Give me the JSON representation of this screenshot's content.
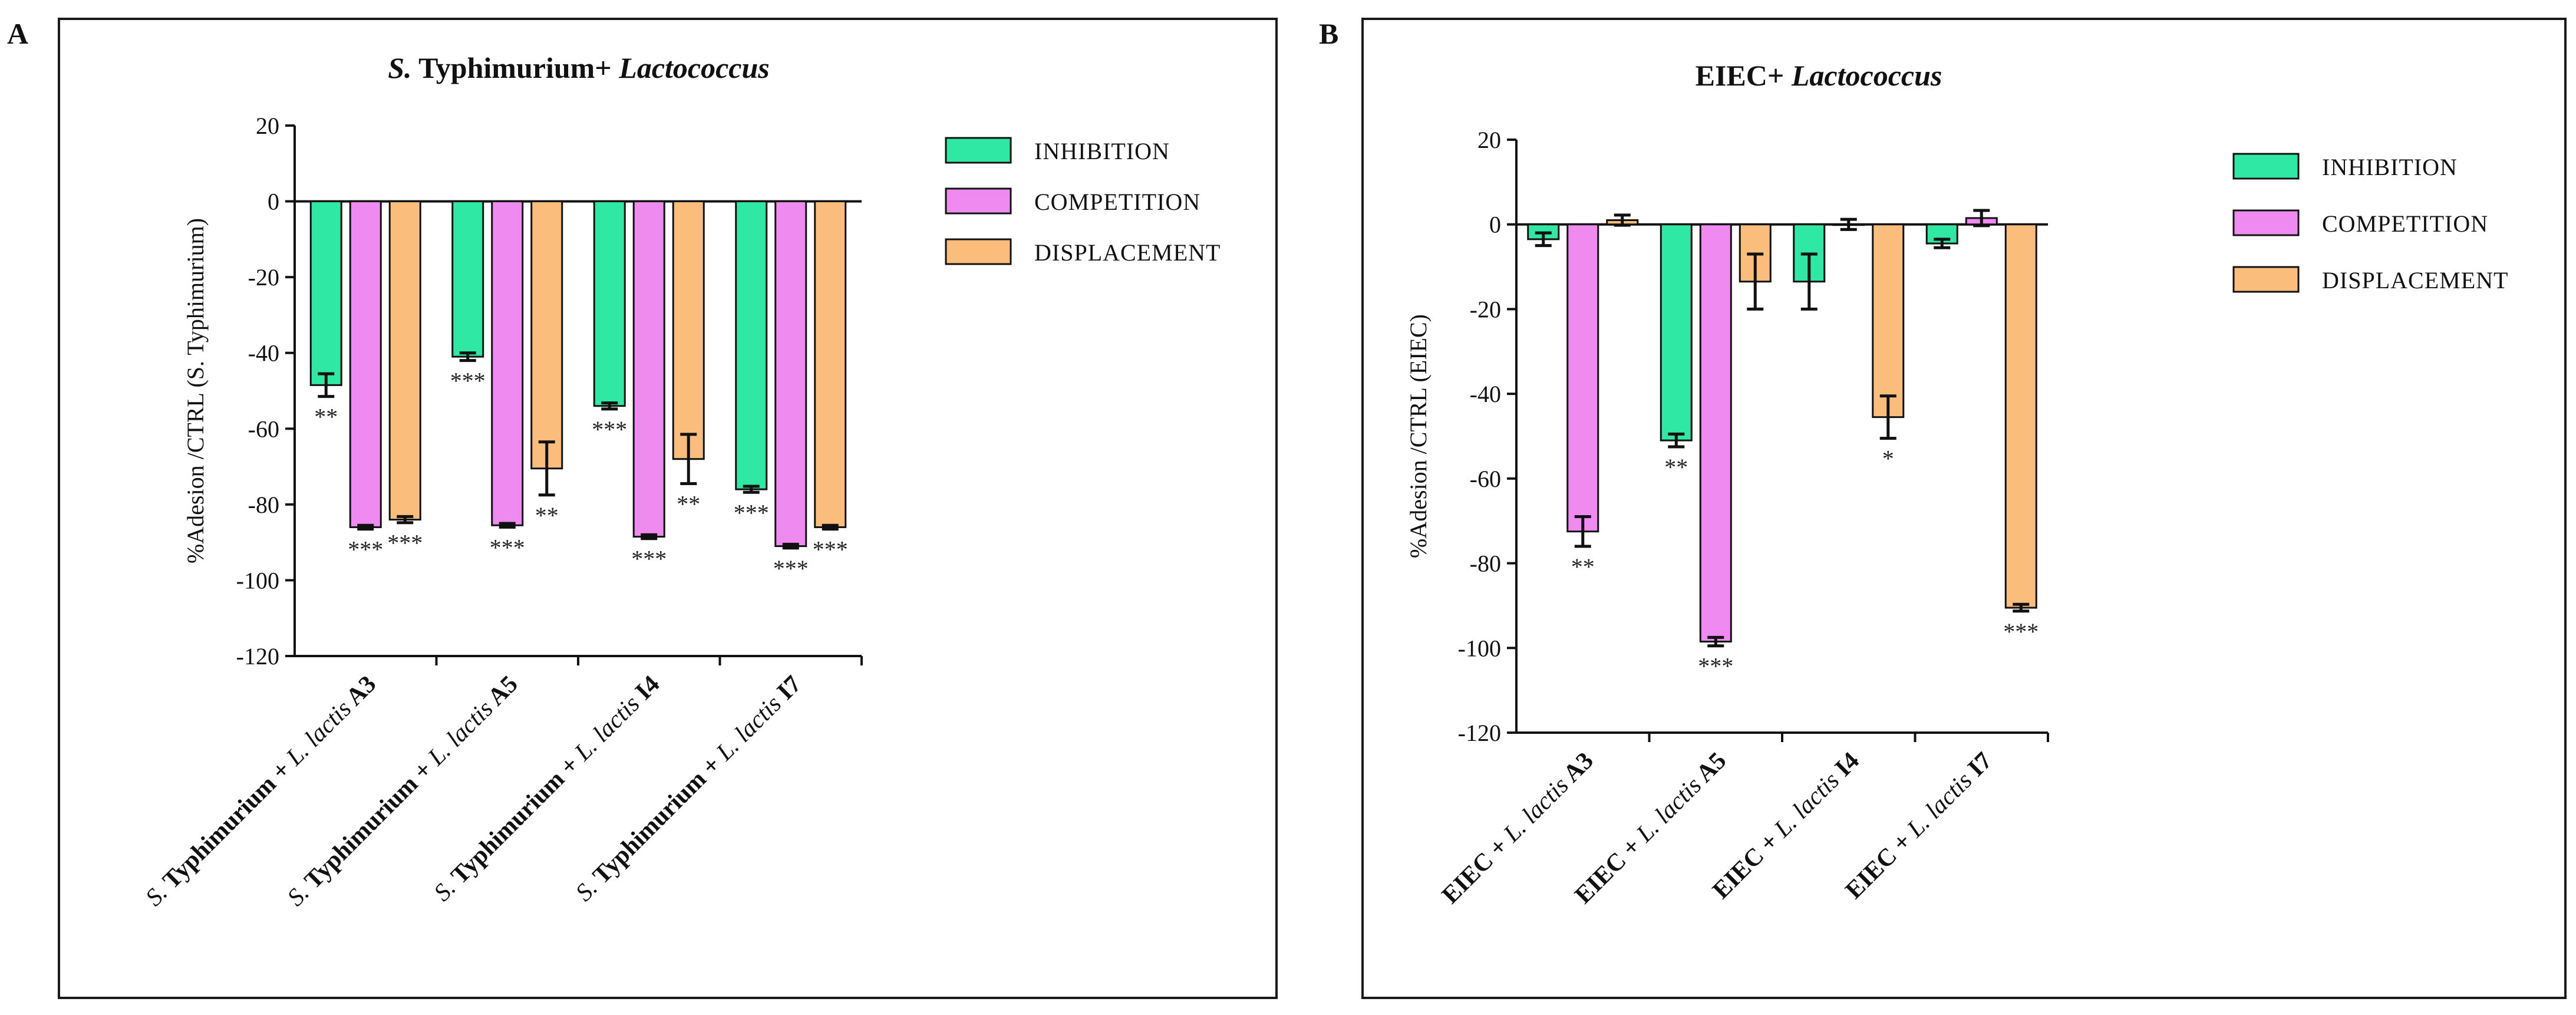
{
  "chart_data": [
    {
      "panel_label": "A",
      "type": "bar",
      "title": {
        "italic": "S.",
        "plain": " Typhimurium+ ",
        "italic2": "Lactococcus"
      },
      "ylabel": "%Adesion /CTRL (S. Typhimurium)",
      "ylim": [
        -120,
        20
      ],
      "yticks": [
        20,
        0,
        -20,
        -40,
        -60,
        -80,
        -100,
        -120
      ],
      "categories": [
        {
          "prefix": "S.",
          "species": " Typhimurium + ",
          "italic": "L. lactis",
          "strain": " A3"
        },
        {
          "prefix": "S.",
          "species": " Typhimurium + ",
          "italic": "L. lactis",
          "strain": " A5"
        },
        {
          "prefix": "S.",
          "species": " Typhimurium + ",
          "italic": "L. lactis",
          "strain": " I4"
        },
        {
          "prefix": "S.",
          "species": " Typhimurium + ",
          "italic": "L. lactis",
          "strain": " I7"
        }
      ],
      "series": [
        {
          "name": "INHIBITION",
          "color": "#2ee8a4",
          "values": [
            -48.5,
            -41,
            -54,
            -76
          ],
          "errors": [
            3,
            1,
            0.8,
            0.8
          ],
          "sig": [
            "**",
            "***",
            "***",
            "***"
          ]
        },
        {
          "name": "COMPETITION",
          "color": "#ef8af0",
          "values": [
            -86,
            -85.5,
            -88.5,
            -91
          ],
          "errors": [
            0.5,
            0.5,
            0.5,
            0.5
          ],
          "sig": [
            "***",
            "***",
            "***",
            "***"
          ]
        },
        {
          "name": "DISPLACEMENT",
          "color": "#fbbd7c",
          "values": [
            -84,
            -70.5,
            -68,
            -86
          ],
          "errors": [
            0.8,
            7,
            6.5,
            0.5
          ],
          "sig": [
            "***",
            "**",
            "**",
            "***"
          ]
        }
      ],
      "legend": "top-right"
    },
    {
      "panel_label": "B",
      "type": "bar",
      "title": {
        "italic": "",
        "plain": "EIEC+ ",
        "italic2": "Lactococcus"
      },
      "ylabel": "%Adesion /CTRL (EIEC)",
      "ylim": [
        -120,
        20
      ],
      "yticks": [
        20,
        0,
        -20,
        -40,
        -60,
        -80,
        -100,
        -120
      ],
      "categories": [
        {
          "prefix": "",
          "species": "EIEC + ",
          "italic": "L. lactis",
          "strain": " A3"
        },
        {
          "prefix": "",
          "species": "EIEC + ",
          "italic": "L. lactis",
          "strain": " A5"
        },
        {
          "prefix": "",
          "species": "EIEC + ",
          "italic": "L. lactis",
          "strain": " I4"
        },
        {
          "prefix": "",
          "species": "EIEC + ",
          "italic": "L. lactis",
          "strain": " I7"
        }
      ],
      "series": [
        {
          "name": "INHIBITION",
          "color": "#2ee8a4",
          "values": [
            -3.5,
            -51,
            -13.5,
            -4.5
          ],
          "errors": [
            1.5,
            1.5,
            6.5,
            1
          ],
          "sig": [
            "",
            "**",
            "",
            ""
          ]
        },
        {
          "name": "COMPETITION",
          "color": "#ef8af0",
          "values": [
            -72.5,
            -98.5,
            0,
            1.5
          ],
          "errors": [
            3.5,
            1,
            1.2,
            1.8
          ],
          "sig": [
            "**",
            "***",
            "",
            ""
          ]
        },
        {
          "name": "DISPLACEMENT",
          "color": "#fbbd7c",
          "values": [
            1,
            -13.5,
            -45.5,
            -90.5
          ],
          "errors": [
            1.2,
            6.5,
            5,
            0.8
          ],
          "sig": [
            "",
            "",
            "*",
            "***"
          ]
        }
      ],
      "legend": "top-right"
    }
  ]
}
